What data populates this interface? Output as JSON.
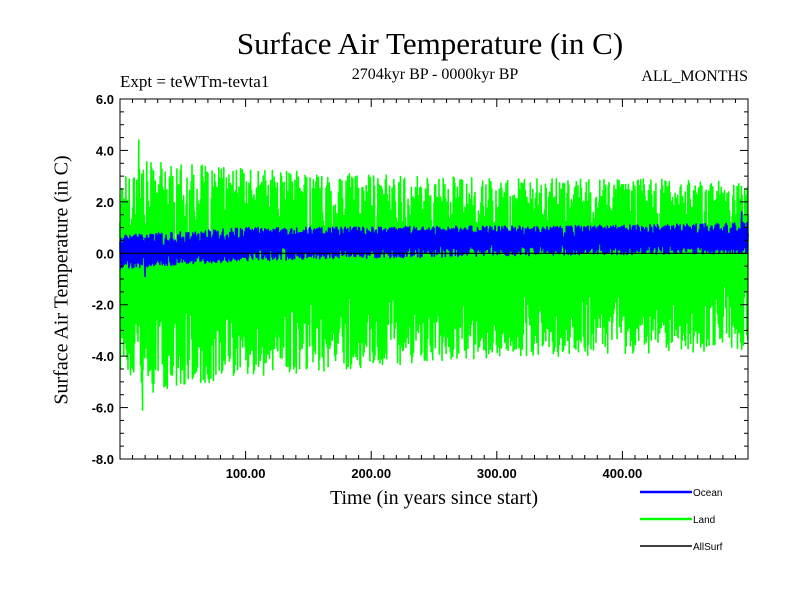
{
  "chart_data": {
    "type": "line",
    "title": "Surface Air Temperature (in C)",
    "experiment_label": "Expt = teWTm-tevta1",
    "period_label": "2704kyr BP - 0000kyr BP",
    "months_label": "ALL_MONTHS",
    "xlabel": "Time (in years since start)",
    "ylabel": "Surface Air Temperature (in C)",
    "xlim": [
      0,
      500
    ],
    "ylim": [
      -8,
      6
    ],
    "x_ticks": [
      100,
      200,
      300,
      400
    ],
    "x_tick_labels": [
      "100.00",
      "200.00",
      "300.00",
      "400.00"
    ],
    "y_ticks": [
      6,
      4,
      2,
      0,
      -2,
      -4,
      -6,
      -8
    ],
    "y_tick_labels": [
      "6.0",
      "4.0",
      "2.0",
      "0.0",
      "-2.0",
      "-4.0",
      "-6.0",
      "-8.0"
    ],
    "series": [
      {
        "name": "Land",
        "color": "#00ff00",
        "mean": [
          [
            0,
            -0.8
          ],
          [
            95,
            -0.8
          ],
          [
            100,
            -0.3
          ],
          [
            300,
            -0.2
          ],
          [
            400,
            0.0
          ],
          [
            500,
            0.1
          ]
        ],
        "spread_upper": [
          [
            0,
            3.0
          ],
          [
            15,
            3.6
          ],
          [
            100,
            3.3
          ],
          [
            300,
            2.9
          ],
          [
            500,
            2.9
          ]
        ],
        "spread_lower": [
          [
            0,
            -4.8
          ],
          [
            15,
            -5.5
          ],
          [
            100,
            -4.8
          ],
          [
            300,
            -4.1
          ],
          [
            500,
            -3.8
          ]
        ],
        "max_point": [
          15,
          4.4
        ],
        "min_point": [
          18,
          -6.1
        ]
      },
      {
        "name": "Ocean",
        "color": "#0000ff",
        "mean": [
          [
            0,
            0.1
          ],
          [
            95,
            0.1
          ],
          [
            100,
            0.5
          ],
          [
            300,
            0.5
          ],
          [
            500,
            0.5
          ]
        ],
        "spread_upper": [
          [
            0,
            0.7
          ],
          [
            100,
            1.0
          ],
          [
            400,
            1.1
          ],
          [
            500,
            1.2
          ]
        ],
        "spread_lower": [
          [
            0,
            -0.6
          ],
          [
            100,
            -0.3
          ],
          [
            300,
            -0.1
          ],
          [
            500,
            0.0
          ]
        ],
        "max_point": [
          495,
          1.6
        ],
        "min_point": [
          20,
          -0.9
        ]
      },
      {
        "name": "AllSurf",
        "color": "#000000",
        "mean": [
          [
            0,
            0.0
          ],
          [
            500,
            0.0
          ]
        ]
      }
    ],
    "legend": [
      {
        "name": "Ocean",
        "color": "#0000ff"
      },
      {
        "name": "Land",
        "color": "#00ff00"
      },
      {
        "name": "AllSurf",
        "color": "#000000"
      }
    ]
  }
}
